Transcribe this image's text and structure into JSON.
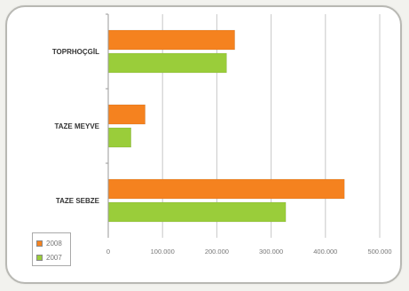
{
  "chart_data": {
    "type": "bar",
    "orientation": "horizontal",
    "categories": [
      "TAZE SEBZE",
      "TAZE MEYVE",
      "TOPRHOÇGİL"
    ],
    "series": [
      {
        "name": "2008",
        "color": "#f5821f",
        "values": [
          435000,
          68000,
          233000
        ]
      },
      {
        "name": "2007",
        "color": "#9acd3a",
        "values": [
          327000,
          42000,
          218000
        ]
      }
    ],
    "x_ticks": [
      "0",
      "100.000",
      "200.000",
      "300.000",
      "400.000",
      "500.000"
    ],
    "xlim": [
      0,
      500000
    ],
    "grid": true,
    "legend": "bottom-left"
  }
}
